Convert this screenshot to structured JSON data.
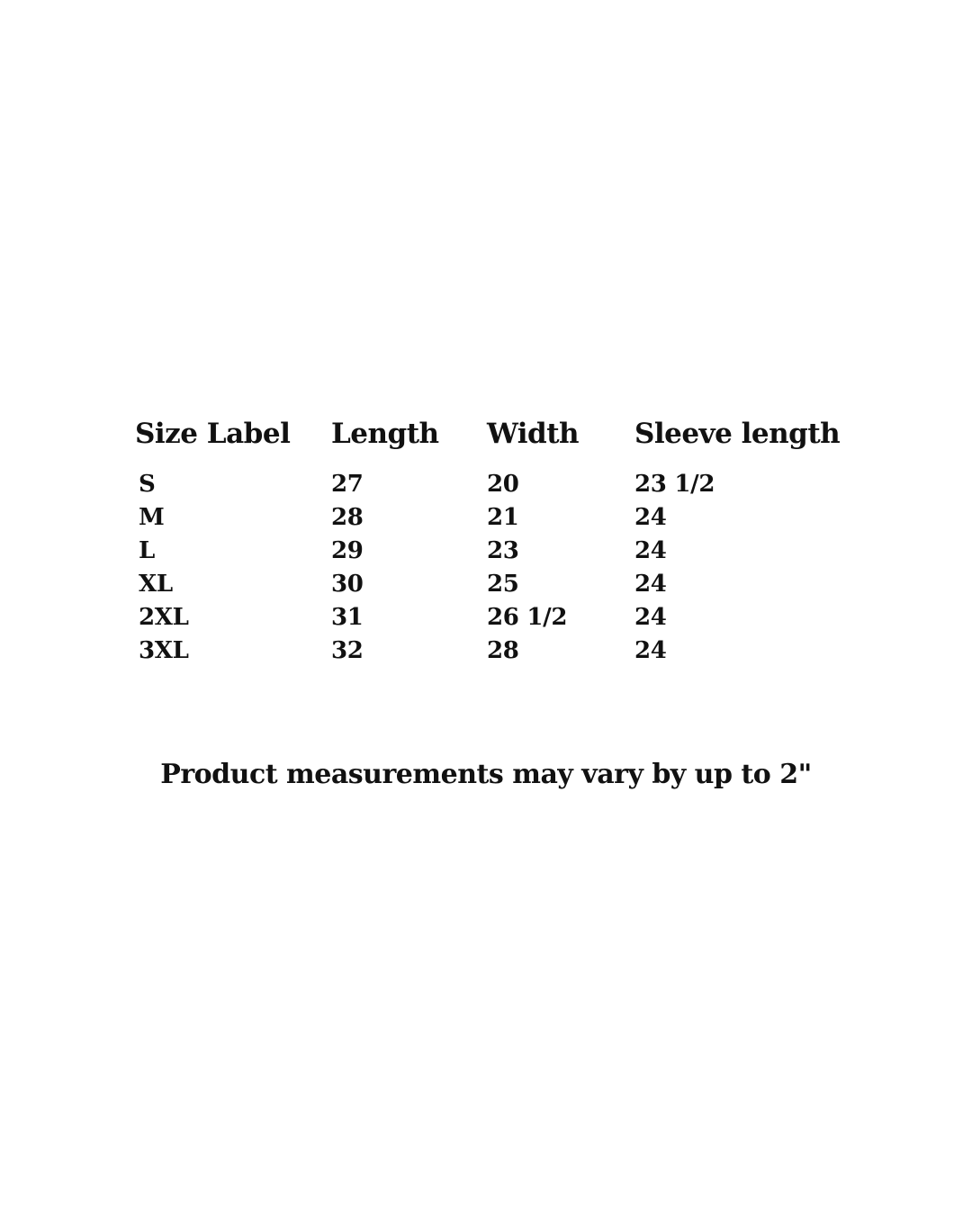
{
  "colors": {
    "background": "#ffffff",
    "text": "#111111"
  },
  "table": {
    "headers": [
      "Size Label",
      "Length",
      "Width",
      "Sleeve length"
    ],
    "rows": [
      [
        "S",
        "27",
        "20",
        "23 1/2"
      ],
      [
        "M",
        "28",
        "21",
        "24"
      ],
      [
        "L",
        "29",
        "23",
        "24"
      ],
      [
        "XL",
        "30",
        "25",
        "24"
      ],
      [
        "2XL",
        "31",
        "26 1/2",
        "24"
      ],
      [
        "3XL",
        "32",
        "28",
        "24"
      ]
    ]
  },
  "note": "Product measurements may vary by up to 2\""
}
